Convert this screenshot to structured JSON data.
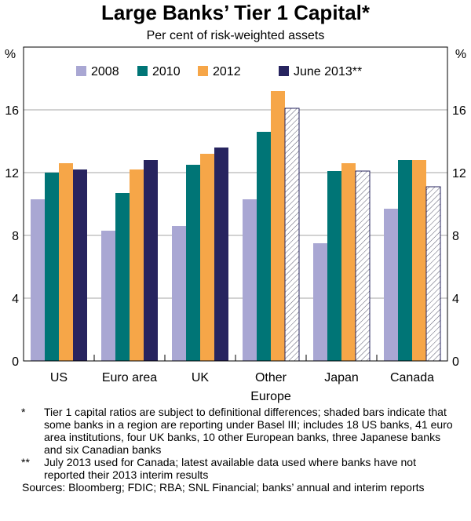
{
  "chart_data": {
    "type": "bar",
    "title": "Large Banks’ Tier 1 Capital*",
    "subtitle": "Per cent of risk-weighted assets",
    "y_unit_left": "%",
    "y_unit_right": "%",
    "ylim": [
      0,
      20
    ],
    "yticks": [
      0,
      4,
      8,
      12,
      16
    ],
    "categories": [
      {
        "label": "US"
      },
      {
        "label": "Euro area"
      },
      {
        "label": "UK"
      },
      {
        "label": "Other",
        "label2": "Europe"
      },
      {
        "label": "Japan"
      },
      {
        "label": "Canada"
      }
    ],
    "series": [
      {
        "name": "2008",
        "color": "#a9a7d3",
        "values": [
          10.3,
          8.3,
          8.6,
          10.3,
          7.5,
          9.7
        ]
      },
      {
        "name": "2010",
        "color": "#007576",
        "values": [
          12.0,
          10.7,
          12.5,
          14.6,
          12.1,
          12.8
        ]
      },
      {
        "name": "2012",
        "color": "#f6a648",
        "values": [
          12.6,
          12.2,
          13.2,
          17.2,
          12.6,
          12.8
        ]
      },
      {
        "name": "June 2013**",
        "color": "#27245f",
        "values": [
          12.2,
          12.8,
          13.6,
          16.1,
          12.1,
          11.1
        ]
      }
    ],
    "shaded": [
      {
        "series": 3,
        "category": 3
      },
      {
        "series": 3,
        "category": 4
      },
      {
        "series": 3,
        "category": 5
      }
    ],
    "legend_position": "top"
  },
  "notes": {
    "note1_mark": "*",
    "note1_text": "Tier 1 capital ratios are subject to definitional differences; shaded bars indicate that some banks in a region are reporting under Basel III; includes 18 US banks, 41 euro area institutions, four UK banks, 10 other European banks, three Japanese banks and six Canadian banks",
    "note2_mark": "**",
    "note2_text": "July 2013 used for Canada; latest available data used where banks have not reported their 2013 interim results",
    "sources": "Sources: Bloomberg; FDIC; RBA; SNL Financial; banks’ annual and interim reports"
  }
}
